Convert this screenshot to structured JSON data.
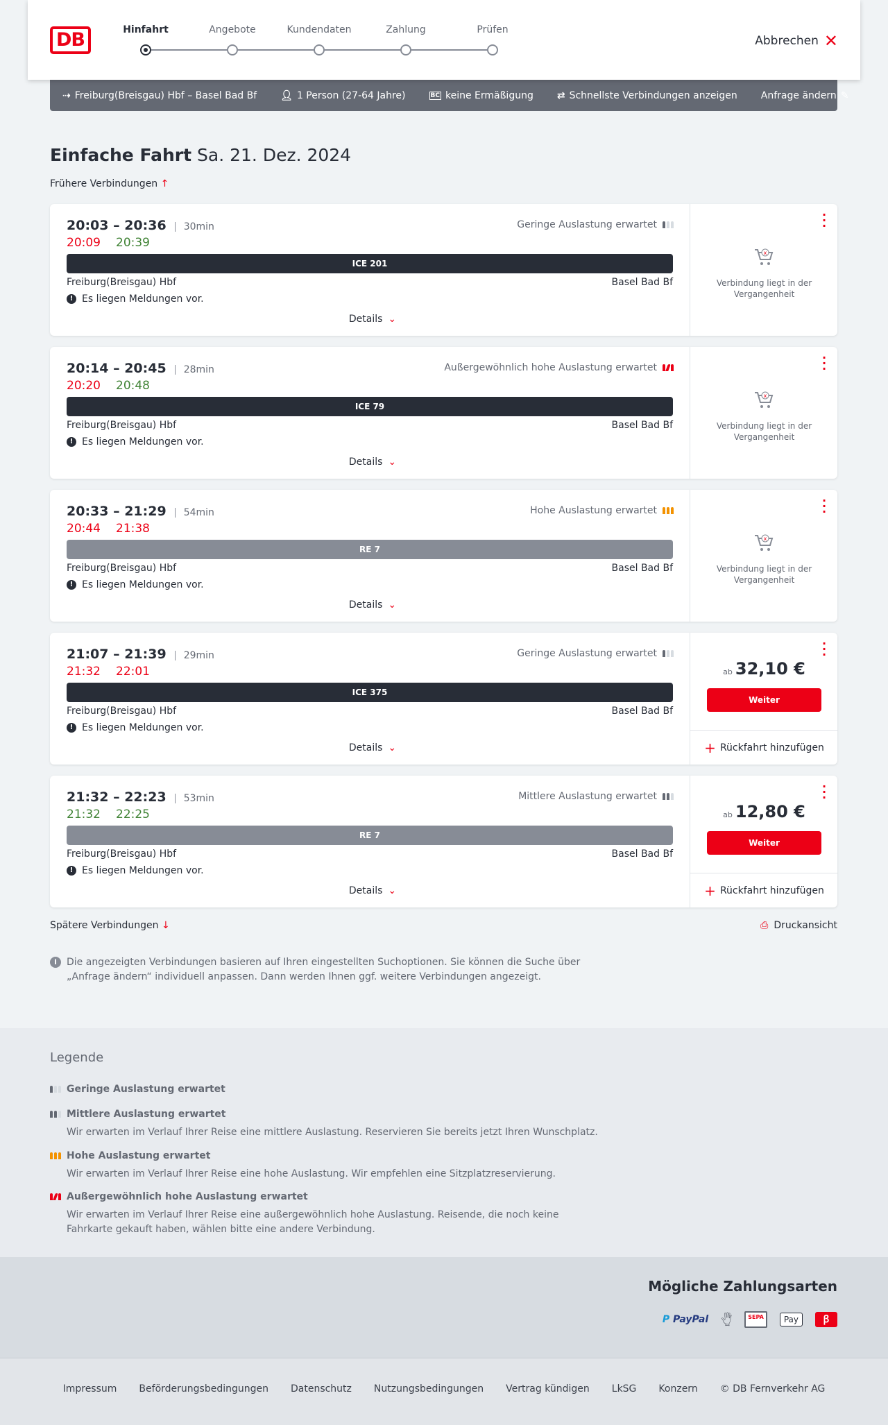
{
  "header": {
    "logo": "DB",
    "steps": [
      {
        "label": "Hinfahrt",
        "active": true
      },
      {
        "label": "Angebote"
      },
      {
        "label": "Kundendaten"
      },
      {
        "label": "Zahlung"
      },
      {
        "label": "Prüfen"
      }
    ],
    "cancel": "Abbrechen"
  },
  "search": {
    "route": "Freiburg(Breisgau) Hbf – Basel Bad Bf",
    "passengers": "1 Person (27-64 Jahre)",
    "discount": "keine Ermäßigung",
    "option": "Schnellste Verbindungen anzeigen",
    "edit": "Anfrage ändern"
  },
  "title": {
    "main": "Einfache Fahrt",
    "date": "Sa. 21. Dez. 2024"
  },
  "earlier": "Frühere Verbindungen",
  "connections": [
    {
      "times": "20:03 – 20:36",
      "duration": "30min",
      "rt_dep": "20:09",
      "rt_dep_status": "late",
      "rt_arr": "20:39",
      "rt_arr_status": "ok",
      "load": "Geringe Auslastung erwartet",
      "load_level": 1,
      "train": "ICE 201",
      "train_type": "long",
      "from": "Freiburg(Breisgau) Hbf",
      "to": "Basel Bad Bf",
      "message": "Es liegen Meldungen vor.",
      "details": "Details",
      "past": "Verbindung liegt in der Vergangenheit"
    },
    {
      "times": "20:14 – 20:45",
      "duration": "28min",
      "rt_dep": "20:20",
      "rt_dep_status": "late",
      "rt_arr": "20:48",
      "rt_arr_status": "ok",
      "load": "Außergewöhnlich hohe Auslastung erwartet",
      "load_level": 4,
      "train": "ICE 79",
      "train_type": "long",
      "from": "Freiburg(Breisgau) Hbf",
      "to": "Basel Bad Bf",
      "message": "Es liegen Meldungen vor.",
      "details": "Details",
      "past": "Verbindung liegt in der Vergangenheit"
    },
    {
      "times": "20:33 – 21:29",
      "duration": "54min",
      "rt_dep": "20:44",
      "rt_dep_status": "late",
      "rt_arr": "21:38",
      "rt_arr_status": "late",
      "load": "Hohe Auslastung erwartet",
      "load_level": 3,
      "train": "RE 7",
      "train_type": "regional",
      "from": "Freiburg(Breisgau) Hbf",
      "to": "Basel Bad Bf",
      "message": "Es liegen Meldungen vor.",
      "details": "Details",
      "past": "Verbindung liegt in der Vergangenheit"
    },
    {
      "times": "21:07 – 21:39",
      "duration": "29min",
      "rt_dep": "21:32",
      "rt_dep_status": "late",
      "rt_arr": "22:01",
      "rt_arr_status": "late",
      "load": "Geringe Auslastung erwartet",
      "load_level": 1,
      "train": "ICE 375",
      "train_type": "long",
      "from": "Freiburg(Breisgau) Hbf",
      "to": "Basel Bad Bf",
      "message": "Es liegen Meldungen vor.",
      "details": "Details",
      "price_prefix": "ab",
      "price": "32,10 €",
      "button": "Weiter",
      "return": "Rückfahrt hinzufügen"
    },
    {
      "times": "21:32 – 22:23",
      "duration": "53min",
      "rt_dep": "21:32",
      "rt_dep_status": "ok",
      "rt_arr": "22:25",
      "rt_arr_status": "ok",
      "load": "Mittlere Auslastung erwartet",
      "load_level": 2,
      "train": "RE 7",
      "train_type": "regional",
      "from": "Freiburg(Breisgau) Hbf",
      "to": "Basel Bad Bf",
      "message": "Es liegen Meldungen vor.",
      "details": "Details",
      "price_prefix": "ab",
      "price": "12,80 €",
      "button": "Weiter",
      "return": "Rückfahrt hinzufügen"
    }
  ],
  "later": "Spätere Verbindungen",
  "print": "Druckansicht",
  "info": "Die angezeigten Verbindungen basieren auf Ihren eingestellten Suchoptionen. Sie können die Suche über „Anfrage ändern“ individuell anpassen. Dann werden Ihnen ggf. weitere Verbindungen angezeigt.",
  "legend": {
    "title": "Legende",
    "items": [
      {
        "title": "Geringe Auslastung erwartet",
        "level": 1,
        "text": ""
      },
      {
        "title": "Mittlere Auslastung erwartet",
        "level": 2,
        "text": "Wir erwarten im Verlauf Ihrer Reise eine mittlere Auslastung. Reservieren Sie bereits jetzt Ihren Wunschplatz."
      },
      {
        "title": "Hohe Auslastung erwartet",
        "level": 3,
        "text": "Wir erwarten im Verlauf Ihrer Reise eine hohe Auslastung. Wir empfehlen eine Sitzplatzreservierung."
      },
      {
        "title": "Außergewöhnlich hohe Auslastung erwartet",
        "level": 4,
        "text": "Wir erwarten im Verlauf Ihrer Reise eine außergewöhnlich hohe Auslastung. Reisende, die noch keine Fahrkarte gekauft haben, wählen bitte eine andere Verbindung."
      }
    ]
  },
  "payment": {
    "title": "Mögliche Zahlungsarten",
    "methods": [
      "PayPal",
      "Kreditkarte",
      "SEPA",
      "Apple Pay",
      "DB Bonus"
    ]
  },
  "footer": [
    "Impressum",
    "Beförderungsbedingungen",
    "Datenschutz",
    "Nutzungsbedingungen",
    "Vertrag kündigen",
    "LkSG",
    "Konzern",
    "© DB Fernverkehr AG"
  ],
  "colors": {
    "brand": "#ec0016",
    "late": "#ec0016",
    "ok": "#408335",
    "ice": "#282d37",
    "regional": "#878c96",
    "high_load": "#f39200"
  }
}
